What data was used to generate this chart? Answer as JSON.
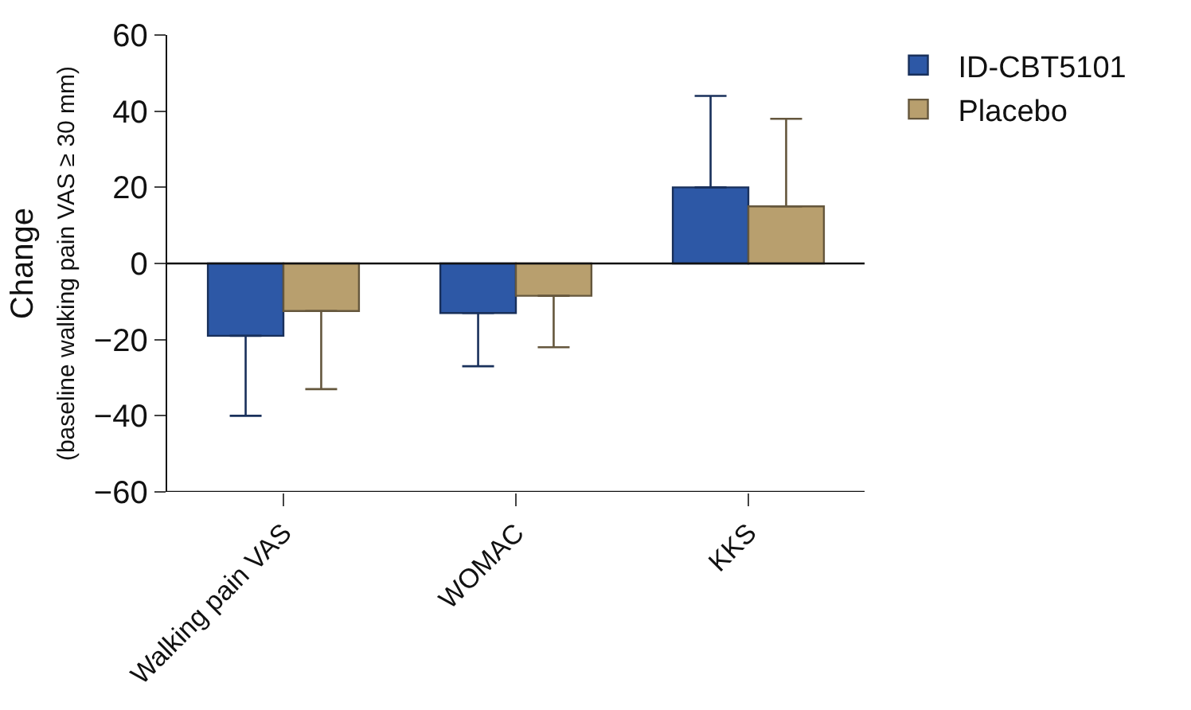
{
  "chart_data": {
    "type": "bar",
    "ylabel": "Change\n(baseline walking pain VAS ≥ 30 mm)",
    "categories": [
      "Walking pain VAS",
      "WOMAC",
      "KKS"
    ],
    "series": [
      {
        "name": "ID-CBT5101",
        "color": "#2d58a6",
        "values": [
          -19,
          -13,
          20
        ],
        "errors": [
          [
            -40,
            -19
          ],
          [
            -27,
            -13
          ],
          [
            20,
            44
          ]
        ]
      },
      {
        "name": "Placebo",
        "color": "#b89f6e",
        "values": [
          -12.5,
          -8.5,
          15
        ],
        "errors": [
          [
            -33,
            -12.5
          ],
          [
            -22,
            -8.5
          ],
          [
            15,
            38
          ]
        ]
      }
    ],
    "ylim": [
      -60,
      60
    ],
    "yticks": [
      -60,
      -40,
      -20,
      0,
      20,
      40,
      60
    ],
    "ref_lines": [
      {
        "axis": "y",
        "value": 0,
        "color": "#111111"
      }
    ],
    "legend": "top right"
  }
}
